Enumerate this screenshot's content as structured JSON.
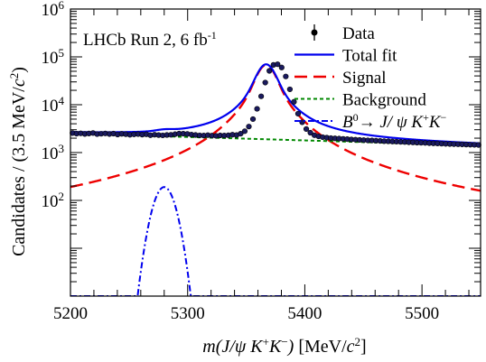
{
  "chart_data": {
    "type": "line",
    "annotation": "LHCb Run 2, 6 fb",
    "annotation_sup": "-1",
    "xlabel": {
      "parts": [
        {
          "t": "m",
          "style": "italic"
        },
        {
          "t": "(",
          "style": "italic"
        },
        {
          "t": "J",
          "style": "italic"
        },
        {
          "t": "/",
          "style": "italic"
        },
        {
          "t": "ψ",
          "style": "italic"
        },
        {
          "t": " K",
          "style": "italic"
        },
        {
          "t": "+",
          "style": "sup"
        },
        {
          "t": "K",
          "style": "italic"
        },
        {
          "t": "−",
          "style": "sup"
        },
        {
          "t": ")",
          "style": "italic"
        },
        {
          "t": " [MeV/",
          "style": "normal"
        },
        {
          "t": "c",
          "style": "italic"
        },
        {
          "t": "2",
          "style": "sup"
        },
        {
          "t": "]",
          "style": "normal"
        }
      ]
    },
    "ylabel": {
      "parts": [
        {
          "t": "Candidates / (3.5 MeV/",
          "style": "normal"
        },
        {
          "t": "c",
          "style": "italic"
        },
        {
          "t": "2",
          "style": "sup"
        },
        {
          "t": ")",
          "style": "normal"
        }
      ]
    },
    "xlim": [
      5200,
      5550
    ],
    "ylim": [
      1,
      1000000
    ],
    "yscale": "log",
    "x_ticks": [
      5200,
      5300,
      5400,
      5500
    ],
    "x_tick_labels": [
      "5200",
      "5300",
      "5400",
      "5500"
    ],
    "y_ticks": [
      {
        "value": 100,
        "base": "10",
        "exp": "2"
      },
      {
        "value": 1000,
        "base": "10",
        "exp": "3"
      },
      {
        "value": 10000,
        "base": "10",
        "exp": "4"
      },
      {
        "value": 100000,
        "base": "10",
        "exp": "5"
      },
      {
        "value": 1000000,
        "base": "10",
        "exp": "6"
      }
    ],
    "legend": {
      "position": "top-right",
      "entries": [
        {
          "key": "data",
          "label": "Data"
        },
        {
          "key": "total",
          "label": "Total fit"
        },
        {
          "key": "signal",
          "label": "Signal"
        },
        {
          "key": "background",
          "label": "Background"
        },
        {
          "key": "bd",
          "label_parts": [
            {
              "t": "B",
              "style": "italic"
            },
            {
              "t": "0",
              "style": "sup"
            },
            {
              "t": "→",
              "style": "normal"
            },
            {
              "t": " J",
              "style": "italic"
            },
            {
              "t": "/",
              "style": "italic"
            },
            {
              "t": " ψ",
              "style": "italic"
            },
            {
              "t": " K",
              "style": "italic"
            },
            {
              "t": "+",
              "style": "sup"
            },
            {
              "t": "K",
              "style": "italic"
            },
            {
              "t": "−",
              "style": "sup"
            }
          ]
        }
      ]
    },
    "colors": {
      "data": "#000000",
      "total": "#0000ee",
      "signal": "#ee0000",
      "background": "#008800",
      "bd": "#0000ee",
      "data_fill": "#1a1a5e"
    },
    "model": {
      "description_free_parameters": true,
      "signal_peak": 5367,
      "signal_height": 68000,
      "signal_core_sigma": 6.5,
      "signal_tail_gamma": 11,
      "background_at_5200": 2500,
      "background_at_5550": 1400,
      "bd_peak": 5280,
      "bd_height": 190,
      "bd_sigma": 7
    },
    "data_points": {
      "x_start": 5201.75,
      "x_step": 3.5,
      "count": 100,
      "y": [
        2550,
        2480,
        2520,
        2450,
        2500,
        2560,
        2430,
        2470,
        2510,
        2440,
        2490,
        2380,
        2460,
        2420,
        2350,
        2400,
        2430,
        2370,
        2410,
        2300,
        2360,
        2320,
        2290,
        2330,
        2350,
        2420,
        2490,
        2480,
        2450,
        2380,
        2330,
        2290,
        2270,
        2310,
        2260,
        2240,
        2280,
        2270,
        2300,
        2360,
        2320,
        2480,
        2800,
        3500,
        5000,
        8200,
        15000,
        29000,
        51000,
        68000,
        70000,
        60000,
        39000,
        21000,
        11500,
        6500,
        4300,
        3100,
        2600,
        2300,
        2180,
        2100,
        2050,
        2010,
        1980,
        1960,
        1930,
        1910,
        1880,
        1860,
        1840,
        1820,
        1800,
        1790,
        1770,
        1750,
        1730,
        1720,
        1700,
        1690,
        1670,
        1660,
        1640,
        1630,
        1610,
        1600,
        1590,
        1570,
        1560,
        1550,
        1530,
        1520,
        1510,
        1500,
        1490,
        1480,
        1470,
        1460,
        1450,
        1440
      ]
    }
  }
}
